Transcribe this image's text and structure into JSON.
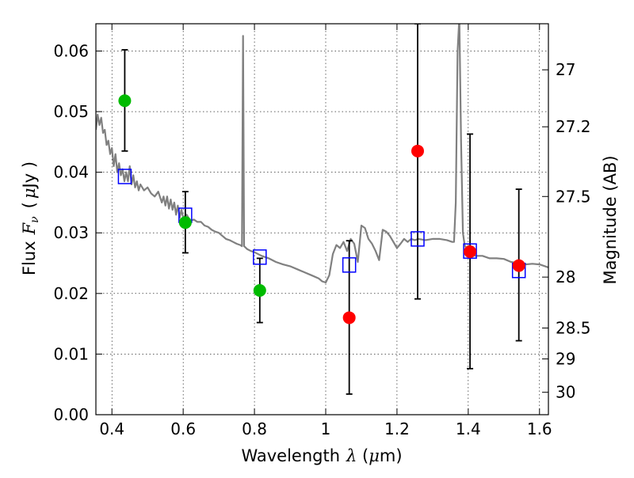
{
  "chart_data": {
    "type": "scatter",
    "xlabel_prefix": "Wavelength",
    "xlabel_symbol": "λ",
    "xlabel_unit_open": " (",
    "xlabel_unit_mu": "μ",
    "xlabel_unit_close": "m)",
    "ylabel_prefix": "Flux",
    "ylabel_symbol": "F",
    "ylabel_subscript": "ν",
    "ylabel_unit_open": "(",
    "ylabel_unit_mu": "μ",
    "ylabel_unit_close": "Jy )",
    "y2label": "Magnitude (AB)",
    "xlim": [
      0.355,
      1.625
    ],
    "ylim": [
      0.0,
      0.0645
    ],
    "grid": true,
    "x_ticks": [
      0.4,
      0.6,
      0.8,
      1.0,
      1.2,
      1.4,
      1.6
    ],
    "x_tick_labels": [
      "0.4",
      "0.6",
      "0.8",
      "1",
      "1.2",
      "1.4",
      "1.6"
    ],
    "y_ticks": [
      0.0,
      0.01,
      0.02,
      0.03,
      0.04,
      0.05,
      0.06
    ],
    "y_tick_labels": [
      "0.00",
      "0.01",
      "0.02",
      "0.03",
      "0.04",
      "0.05",
      "0.06"
    ],
    "y2_ticks": [
      {
        "flux": 0.0569,
        "label": "27"
      },
      {
        "flux": 0.0475,
        "label": "27.2"
      },
      {
        "flux": 0.036,
        "label": "27.5"
      },
      {
        "flux": 0.0227,
        "label": "28"
      },
      {
        "flux": 0.0143,
        "label": "28.5"
      },
      {
        "flux": 0.0092,
        "label": "29"
      },
      {
        "flux": 0.0037,
        "label": "30"
      }
    ],
    "colors": {
      "model": "#808080",
      "model_points": "#0000ff",
      "green_points": "#00bb00",
      "red_points": "#ff0000",
      "errorbars": "#000000"
    },
    "series": [
      {
        "kind": "line",
        "points": [
          [
            0.355,
            0.047
          ],
          [
            0.36,
            0.0495
          ],
          [
            0.365,
            0.0478
          ],
          [
            0.37,
            0.049
          ],
          [
            0.375,
            0.0465
          ],
          [
            0.38,
            0.047
          ],
          [
            0.385,
            0.0445
          ],
          [
            0.39,
            0.0452
          ],
          [
            0.395,
            0.043
          ],
          [
            0.4,
            0.044
          ],
          [
            0.405,
            0.041
          ],
          [
            0.41,
            0.043
          ],
          [
            0.415,
            0.04
          ],
          [
            0.42,
            0.0415
          ],
          [
            0.425,
            0.0395
          ],
          [
            0.43,
            0.0405
          ],
          [
            0.435,
            0.0385
          ],
          [
            0.44,
            0.04
          ],
          [
            0.445,
            0.0385
          ],
          [
            0.45,
            0.041
          ],
          [
            0.455,
            0.038
          ],
          [
            0.46,
            0.0395
          ],
          [
            0.465,
            0.0375
          ],
          [
            0.47,
            0.0385
          ],
          [
            0.475,
            0.037
          ],
          [
            0.48,
            0.038
          ],
          [
            0.49,
            0.037
          ],
          [
            0.5,
            0.0375
          ],
          [
            0.51,
            0.0365
          ],
          [
            0.52,
            0.036
          ],
          [
            0.53,
            0.0368
          ],
          [
            0.54,
            0.035
          ],
          [
            0.545,
            0.036
          ],
          [
            0.55,
            0.0345
          ],
          [
            0.555,
            0.036
          ],
          [
            0.56,
            0.034
          ],
          [
            0.565,
            0.0355
          ],
          [
            0.57,
            0.0338
          ],
          [
            0.575,
            0.035
          ],
          [
            0.58,
            0.033
          ],
          [
            0.585,
            0.0345
          ],
          [
            0.59,
            0.0325
          ],
          [
            0.595,
            0.0338
          ],
          [
            0.6,
            0.0325
          ],
          [
            0.61,
            0.033
          ],
          [
            0.62,
            0.032
          ],
          [
            0.63,
            0.0322
          ],
          [
            0.64,
            0.0318
          ],
          [
            0.65,
            0.0318
          ],
          [
            0.66,
            0.0312
          ],
          [
            0.67,
            0.031
          ],
          [
            0.68,
            0.0305
          ],
          [
            0.69,
            0.0302
          ],
          [
            0.7,
            0.03
          ],
          [
            0.71,
            0.0295
          ],
          [
            0.72,
            0.029
          ],
          [
            0.73,
            0.0288
          ],
          [
            0.74,
            0.0285
          ],
          [
            0.75,
            0.0282
          ],
          [
            0.76,
            0.028
          ],
          [
            0.765,
            0.0278
          ],
          [
            0.768,
            0.0625
          ],
          [
            0.771,
            0.0278
          ],
          [
            0.78,
            0.0273
          ],
          [
            0.79,
            0.027
          ],
          [
            0.8,
            0.0268
          ],
          [
            0.82,
            0.0262
          ],
          [
            0.84,
            0.0258
          ],
          [
            0.86,
            0.0252
          ],
          [
            0.88,
            0.0248
          ],
          [
            0.9,
            0.0245
          ],
          [
            0.92,
            0.024
          ],
          [
            0.94,
            0.0235
          ],
          [
            0.96,
            0.023
          ],
          [
            0.98,
            0.0225
          ],
          [
            0.99,
            0.022
          ],
          [
            1.0,
            0.0218
          ],
          [
            1.01,
            0.023
          ],
          [
            1.02,
            0.0265
          ],
          [
            1.03,
            0.028
          ],
          [
            1.04,
            0.0275
          ],
          [
            1.05,
            0.0285
          ],
          [
            1.06,
            0.027
          ],
          [
            1.07,
            0.029
          ],
          [
            1.08,
            0.0282
          ],
          [
            1.09,
            0.0252
          ],
          [
            1.1,
            0.0312
          ],
          [
            1.11,
            0.0308
          ],
          [
            1.12,
            0.029
          ],
          [
            1.13,
            0.0282
          ],
          [
            1.14,
            0.027
          ],
          [
            1.15,
            0.0255
          ],
          [
            1.16,
            0.0305
          ],
          [
            1.17,
            0.0302
          ],
          [
            1.18,
            0.0295
          ],
          [
            1.19,
            0.0285
          ],
          [
            1.2,
            0.0275
          ],
          [
            1.21,
            0.0282
          ],
          [
            1.22,
            0.029
          ],
          [
            1.23,
            0.0285
          ],
          [
            1.24,
            0.029
          ],
          [
            1.25,
            0.0288
          ],
          [
            1.26,
            0.029
          ],
          [
            1.28,
            0.0288
          ],
          [
            1.3,
            0.029
          ],
          [
            1.32,
            0.029
          ],
          [
            1.34,
            0.0288
          ],
          [
            1.355,
            0.0285
          ],
          [
            1.36,
            0.0285
          ],
          [
            1.365,
            0.035
          ],
          [
            1.37,
            0.06
          ],
          [
            1.375,
            0.0655
          ],
          [
            1.38,
            0.045
          ],
          [
            1.385,
            0.03
          ],
          [
            1.39,
            0.028
          ],
          [
            1.4,
            0.0268
          ],
          [
            1.42,
            0.0262
          ],
          [
            1.44,
            0.0262
          ],
          [
            1.46,
            0.0258
          ],
          [
            1.48,
            0.0258
          ],
          [
            1.5,
            0.0257
          ],
          [
            1.52,
            0.0252
          ],
          [
            1.54,
            0.025
          ],
          [
            1.56,
            0.0248
          ],
          [
            1.58,
            0.0249
          ],
          [
            1.6,
            0.0248
          ],
          [
            1.625,
            0.0243
          ]
        ]
      },
      {
        "kind": "squares",
        "points": [
          [
            0.436,
            0.0393
          ],
          [
            0.606,
            0.0329
          ],
          [
            0.815,
            0.026
          ],
          [
            1.066,
            0.0247
          ],
          [
            1.258,
            0.029
          ],
          [
            1.405,
            0.027
          ],
          [
            1.542,
            0.0238
          ]
        ]
      },
      {
        "kind": "points",
        "color": "green",
        "points": [
          {
            "x": 0.436,
            "y": 0.0518,
            "lo": 0.0435,
            "hi": 0.0602
          },
          {
            "x": 0.606,
            "y": 0.0317,
            "lo": 0.0267,
            "hi": 0.0368
          },
          {
            "x": 0.815,
            "y": 0.0205,
            "lo": 0.0152,
            "hi": 0.0258
          }
        ]
      },
      {
        "kind": "points",
        "color": "red",
        "points": [
          {
            "x": 1.066,
            "y": 0.016,
            "lo": 0.0034,
            "hi": 0.0287
          },
          {
            "x": 1.258,
            "y": 0.0435,
            "lo": 0.0191,
            "hi": 0.0645
          },
          {
            "x": 1.405,
            "y": 0.0269,
            "lo": 0.0076,
            "hi": 0.0463
          },
          {
            "x": 1.542,
            "y": 0.0246,
            "lo": 0.0122,
            "hi": 0.0372
          }
        ]
      }
    ]
  }
}
